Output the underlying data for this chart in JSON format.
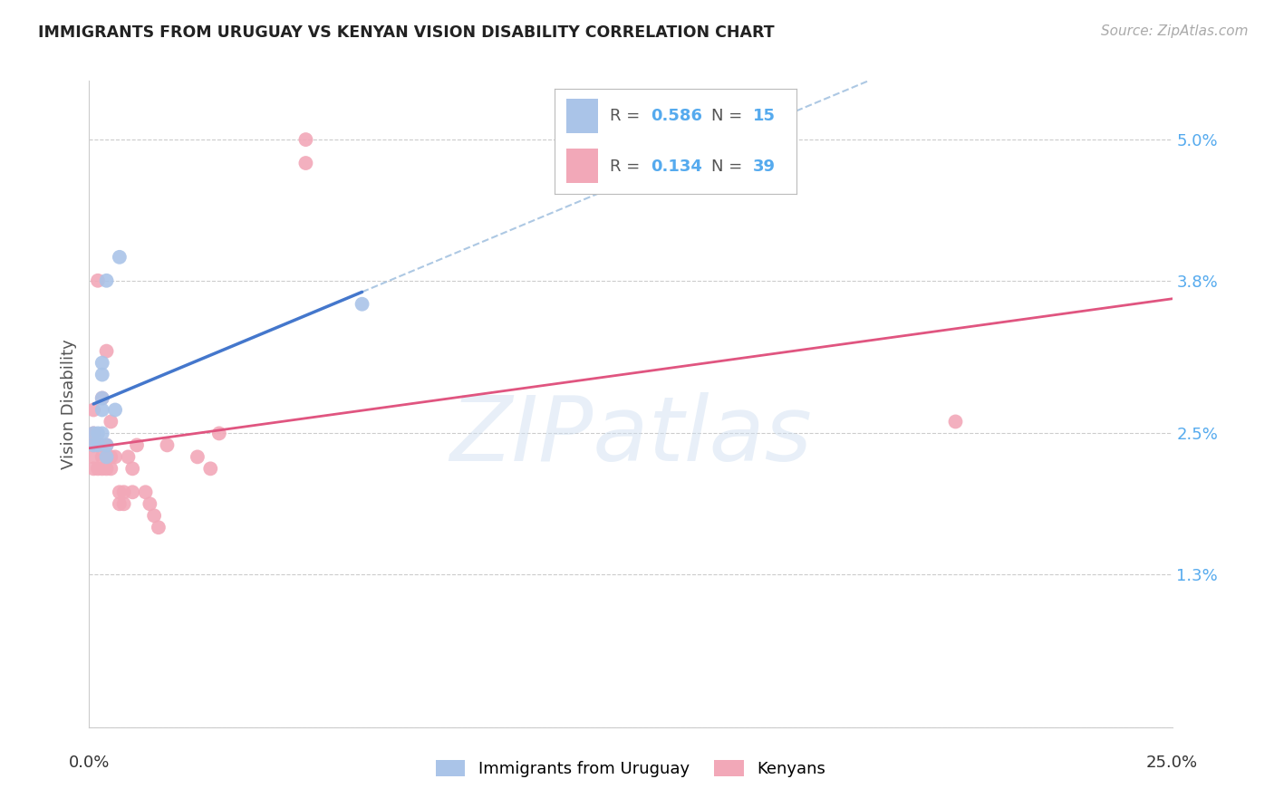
{
  "title": "IMMIGRANTS FROM URUGUAY VS KENYAN VISION DISABILITY CORRELATION CHART",
  "source": "Source: ZipAtlas.com",
  "ylabel": "Vision Disability",
  "yticks": [
    0.0,
    0.013,
    0.025,
    0.038,
    0.05
  ],
  "ytick_labels": [
    "",
    "1.3%",
    "2.5%",
    "3.8%",
    "5.0%"
  ],
  "xlim": [
    0.0,
    0.25
  ],
  "ylim": [
    0.0,
    0.055
  ],
  "legend_label1": "Immigrants from Uruguay",
  "legend_label2": "Kenyans",
  "blue_color": "#aac4e8",
  "pink_color": "#f2a8b8",
  "blue_line_color": "#4477cc",
  "pink_line_color": "#e05580",
  "blue_dash_color": "#99bbdd",
  "watermark": "ZIPatlas",
  "uruguay_x": [
    0.001,
    0.001,
    0.002,
    0.002,
    0.003,
    0.003,
    0.003,
    0.003,
    0.003,
    0.004,
    0.004,
    0.004,
    0.006,
    0.007,
    0.063
  ],
  "uruguay_y": [
    0.024,
    0.025,
    0.024,
    0.025,
    0.025,
    0.027,
    0.028,
    0.03,
    0.031,
    0.023,
    0.024,
    0.038,
    0.027,
    0.04,
    0.036
  ],
  "kenya_x": [
    0.001,
    0.001,
    0.001,
    0.001,
    0.001,
    0.002,
    0.002,
    0.002,
    0.003,
    0.003,
    0.003,
    0.003,
    0.004,
    0.004,
    0.004,
    0.004,
    0.005,
    0.005,
    0.005,
    0.006,
    0.007,
    0.007,
    0.008,
    0.008,
    0.009,
    0.01,
    0.01,
    0.011,
    0.013,
    0.014,
    0.015,
    0.016,
    0.018,
    0.025,
    0.028,
    0.03,
    0.05,
    0.05,
    0.2
  ],
  "kenya_y": [
    0.022,
    0.023,
    0.024,
    0.025,
    0.027,
    0.022,
    0.024,
    0.038,
    0.022,
    0.023,
    0.024,
    0.028,
    0.022,
    0.023,
    0.024,
    0.032,
    0.022,
    0.023,
    0.026,
    0.023,
    0.019,
    0.02,
    0.019,
    0.02,
    0.023,
    0.02,
    0.022,
    0.024,
    0.02,
    0.019,
    0.018,
    0.017,
    0.024,
    0.023,
    0.022,
    0.025,
    0.048,
    0.05,
    0.026
  ],
  "grid_color": "#cccccc",
  "background_color": "#ffffff"
}
